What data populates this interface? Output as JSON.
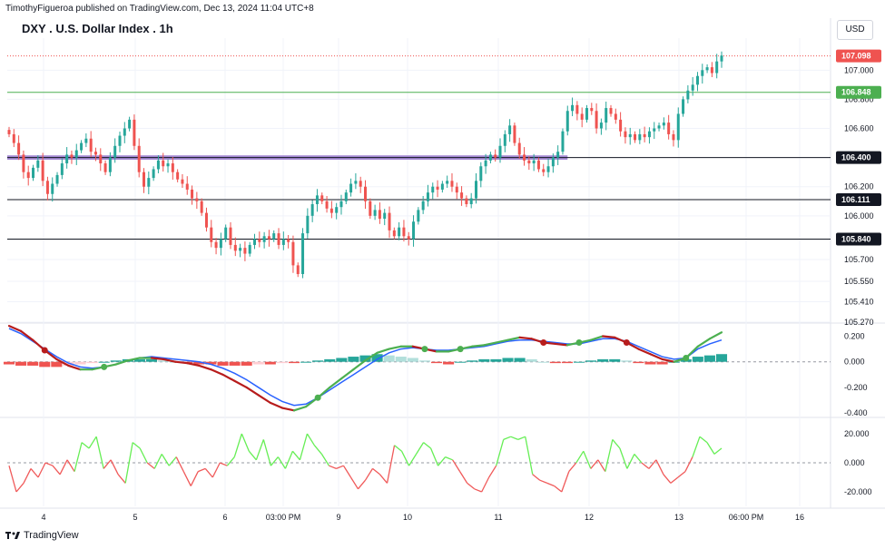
{
  "header": {
    "publisher": "TimothyFigueroa published on TradingView.com, Dec 13, 2024 11:04 UTC+8",
    "title": "DXY . U.S. Dollar Index . 1h",
    "currency": "USD"
  },
  "footer": {
    "brand": "TradingView"
  },
  "colors": {
    "up": "#26a69a",
    "down": "#ef5350",
    "macd": "#2962ff",
    "signal_up": "#4caf50",
    "signal_down": "#b71c1c",
    "zone": "#9575cd",
    "green_line": "#4caf50",
    "grid": "#f0f3fa"
  },
  "chart_data": [
    {
      "type": "candlestick",
      "title": "DXY . U.S. Dollar Index . 1h",
      "ylim": [
        105.27,
        107.22
      ],
      "y_ticks": [
        "107.000",
        "106.800",
        "106.600",
        "106.400",
        "106.200",
        "106.000",
        "105.840",
        "105.700",
        "105.550",
        "105.410",
        "105.270"
      ],
      "price_tags": [
        {
          "value": 107.098,
          "label": "107.098",
          "color": "#ef5350",
          "line": "dotted"
        },
        {
          "value": 106.848,
          "label": "106.848",
          "color": "#4caf50",
          "line": "solid"
        },
        {
          "value": 106.4,
          "label": "106.400",
          "color": "#131722",
          "line": "solid"
        },
        {
          "value": 106.111,
          "label": "106.111",
          "color": "#131722",
          "line": "solid"
        },
        {
          "value": 105.84,
          "label": "105.840",
          "color": "#131722",
          "line": "solid"
        }
      ],
      "zone": {
        "from": 106.385,
        "to": 106.415,
        "end_index": 116
      },
      "close": [
        106.56,
        106.5,
        106.42,
        106.3,
        106.26,
        106.33,
        106.38,
        106.24,
        106.15,
        106.22,
        106.28,
        106.36,
        106.42,
        106.4,
        106.45,
        106.5,
        106.53,
        106.44,
        106.42,
        106.36,
        106.3,
        106.4,
        106.48,
        106.55,
        106.6,
        106.66,
        106.48,
        106.3,
        106.2,
        106.26,
        106.32,
        106.38,
        106.34,
        106.36,
        106.3,
        106.25,
        106.22,
        106.18,
        106.12,
        106.1,
        106.02,
        105.92,
        105.82,
        105.78,
        105.84,
        105.92,
        105.8,
        105.76,
        105.78,
        105.74,
        105.8,
        105.84,
        105.82,
        105.86,
        105.84,
        105.88,
        105.8,
        105.84,
        105.82,
        105.66,
        105.6,
        105.88,
        106.0,
        106.08,
        106.14,
        106.1,
        106.05,
        106.02,
        106.06,
        106.1,
        106.16,
        106.22,
        106.24,
        106.2,
        106.1,
        106.0,
        106.04,
        105.98,
        106.02,
        105.9,
        105.86,
        105.92,
        105.86,
        105.84,
        105.96,
        106.04,
        106.1,
        106.16,
        106.2,
        106.18,
        106.22,
        106.24,
        106.2,
        106.16,
        106.12,
        106.08,
        106.12,
        106.24,
        106.34,
        106.38,
        106.42,
        106.4,
        106.48,
        106.56,
        106.62,
        106.5,
        106.42,
        106.38,
        106.36,
        106.38,
        106.32,
        106.3,
        106.34,
        106.4,
        106.44,
        106.58,
        106.72,
        106.76,
        106.7,
        106.66,
        106.74,
        106.72,
        106.6,
        106.64,
        106.74,
        106.7,
        106.66,
        106.58,
        106.54,
        106.56,
        106.52,
        106.56,
        106.54,
        106.58,
        106.6,
        106.62,
        106.64,
        106.56,
        106.52,
        106.7,
        106.8,
        106.86,
        106.9,
        106.96,
        107.0,
        107.02,
        106.98,
        107.06,
        107.1
      ]
    },
    {
      "type": "line",
      "title": "MACD",
      "ylim": [
        -0.42,
        0.26
      ],
      "y_ticks": [
        "0.200",
        "0.000",
        "-0.200",
        "-0.400"
      ],
      "series": [
        {
          "values": [
            0.26,
            0.22,
            0.16,
            0.1,
            0.04,
            -0.01,
            -0.04,
            -0.05,
            -0.04,
            -0.02,
            0.01,
            0.03,
            0.04,
            0.03,
            0.02,
            0.01,
            0.0,
            -0.02,
            -0.05,
            -0.09,
            -0.14,
            -0.2,
            -0.26,
            -0.31,
            -0.34,
            -0.33,
            -0.28,
            -0.22,
            -0.16,
            -0.1,
            -0.04,
            0.02,
            0.07,
            0.1,
            0.11,
            0.1,
            0.09,
            0.09,
            0.1,
            0.11,
            0.12,
            0.14,
            0.16,
            0.17,
            0.17,
            0.16,
            0.15,
            0.14,
            0.14,
            0.16,
            0.18,
            0.18,
            0.16,
            0.12,
            0.08,
            0.04,
            0.02,
            0.03,
            0.1,
            0.14,
            0.17
          ]
        },
        {
          "values": [
            0.28,
            0.24,
            0.17,
            0.09,
            0.02,
            -0.03,
            -0.06,
            -0.06,
            -0.04,
            -0.02,
            0.01,
            0.03,
            0.03,
            0.02,
            0.0,
            -0.01,
            -0.03,
            -0.06,
            -0.1,
            -0.15,
            -0.2,
            -0.26,
            -0.32,
            -0.36,
            -0.38,
            -0.35,
            -0.28,
            -0.2,
            -0.13,
            -0.06,
            0.01,
            0.07,
            0.1,
            0.12,
            0.12,
            0.1,
            0.08,
            0.08,
            0.1,
            0.12,
            0.13,
            0.15,
            0.17,
            0.19,
            0.18,
            0.15,
            0.14,
            0.13,
            0.15,
            0.17,
            0.2,
            0.19,
            0.15,
            0.1,
            0.06,
            0.02,
            0.0,
            0.03,
            0.12,
            0.18,
            0.23
          ]
        }
      ],
      "histogram": [
        -0.02,
        -0.03,
        -0.03,
        -0.04,
        -0.04,
        -0.03,
        -0.02,
        -0.01,
        0.0,
        0.01,
        0.02,
        0.02,
        0.02,
        0.01,
        0.0,
        -0.01,
        -0.02,
        -0.02,
        -0.03,
        -0.03,
        -0.03,
        -0.02,
        -0.02,
        -0.01,
        -0.01,
        0.0,
        0.01,
        0.02,
        0.03,
        0.04,
        0.05,
        0.06,
        0.05,
        0.04,
        0.03,
        0.01,
        -0.01,
        -0.02,
        0.0,
        0.01,
        0.02,
        0.02,
        0.03,
        0.03,
        0.02,
        0.0,
        -0.01,
        -0.01,
        0.0,
        0.01,
        0.02,
        0.02,
        0.01,
        -0.01,
        -0.02,
        -0.02,
        0.0,
        0.02,
        0.04,
        0.05,
        0.06
      ]
    },
    {
      "type": "line",
      "title": "Oscillator",
      "ylim": [
        -30,
        30
      ],
      "y_ticks": [
        "20.000",
        "0.000",
        "-20.000"
      ],
      "values": [
        -2,
        -20,
        -14,
        -4,
        -10,
        0,
        -2,
        -8,
        2,
        -6,
        14,
        10,
        18,
        -4,
        2,
        -8,
        -14,
        14,
        10,
        0,
        -4,
        6,
        -2,
        4,
        -6,
        -16,
        -6,
        -4,
        -10,
        0,
        -2,
        4,
        20,
        8,
        2,
        16,
        -2,
        4,
        -4,
        8,
        2,
        20,
        12,
        6,
        -2,
        -4,
        -2,
        -10,
        -18,
        -12,
        -4,
        -8,
        -14,
        12,
        8,
        -2,
        6,
        14,
        10,
        -2,
        4,
        2,
        -6,
        -14,
        -18,
        -20,
        -10,
        -2,
        16,
        18,
        16,
        18,
        -8,
        -12,
        -14,
        -16,
        -20,
        -6,
        0,
        8,
        -4,
        2,
        -6,
        16,
        10,
        -4,
        6,
        0,
        -4,
        2,
        -8,
        -14,
        -10,
        -6,
        4,
        18,
        14,
        6,
        10
      ]
    }
  ],
  "x_axis": {
    "ticks": [
      "4",
      "5",
      "6",
      "03:00 PM",
      "9",
      "10",
      "11",
      "12",
      "13",
      "06:00 PM",
      "16"
    ]
  }
}
